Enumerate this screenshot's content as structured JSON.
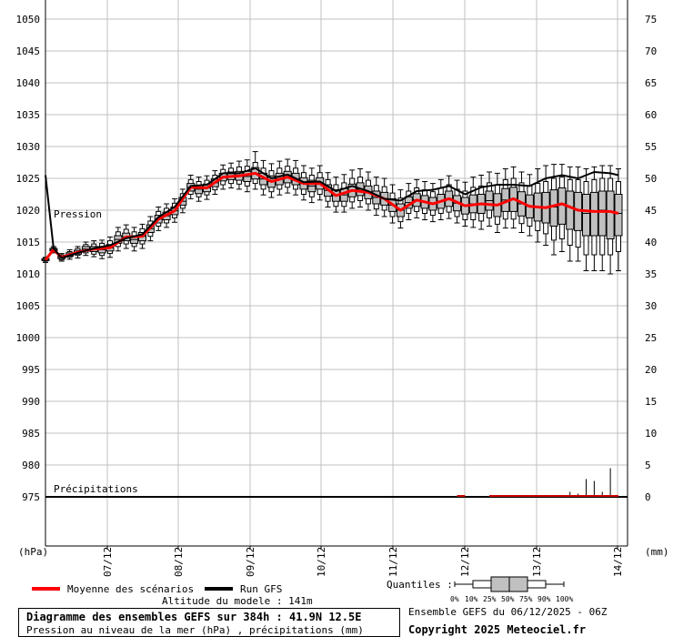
{
  "chart_data": {
    "type": "line",
    "left_axis_unit": "(hPa)",
    "right_axis_unit": "(mm)",
    "left_ticks": [
      1050,
      1045,
      1040,
      1035,
      1030,
      1025,
      1020,
      1015,
      1010,
      1005,
      1000,
      995,
      990,
      985,
      980,
      975
    ],
    "right_ticks": [
      75,
      70,
      65,
      60,
      55,
      50,
      45,
      40,
      35,
      30,
      25,
      20,
      15,
      10,
      5,
      0
    ],
    "ylim_pressure": [
      975,
      1052
    ],
    "x_ticks": [
      "07/12",
      "08/12",
      "09/12",
      "10/12",
      "11/12",
      "12/12",
      "13/12",
      "14/12"
    ],
    "pressure_label": "Pression",
    "precip_label": "Précipitations",
    "grid": true,
    "boxes": [
      {
        "d": 0,
        "min": 1011.8,
        "q10": 1012.0,
        "q25": 1012.1,
        "med": 1012.2,
        "q75": 1012.4,
        "q90": 1012.5,
        "max": 1012.6
      },
      {
        "d": 0.25,
        "min": 1013.3,
        "q10": 1013.5,
        "q25": 1013.6,
        "med": 1013.8,
        "q75": 1014.0,
        "q90": 1014.1,
        "max": 1014.3
      },
      {
        "d": 0.5,
        "min": 1012.0,
        "q10": 1012.2,
        "q25": 1012.4,
        "med": 1012.6,
        "q75": 1012.8,
        "q90": 1013.0,
        "max": 1013.2
      },
      {
        "d": 0.75,
        "min": 1012.3,
        "q10": 1012.6,
        "q25": 1012.8,
        "med": 1013.0,
        "q75": 1013.3,
        "q90": 1013.5,
        "max": 1013.8
      },
      {
        "d": 1,
        "min": 1012.5,
        "q10": 1012.9,
        "q25": 1013.1,
        "med": 1013.4,
        "q75": 1013.7,
        "q90": 1014.0,
        "max": 1014.3
      },
      {
        "d": 1.25,
        "min": 1012.9,
        "q10": 1013.3,
        "q25": 1013.6,
        "med": 1013.9,
        "q75": 1014.3,
        "q90": 1014.6,
        "max": 1015.0
      },
      {
        "d": 1.5,
        "min": 1012.7,
        "q10": 1013.1,
        "q25": 1013.5,
        "med": 1013.9,
        "q75": 1014.3,
        "q90": 1014.7,
        "max": 1015.2
      },
      {
        "d": 1.75,
        "min": 1012.4,
        "q10": 1012.9,
        "q25": 1013.3,
        "med": 1013.8,
        "q75": 1014.3,
        "q90": 1014.8,
        "max": 1015.3
      },
      {
        "d": 2,
        "min": 1012.6,
        "q10": 1013.2,
        "q25": 1013.6,
        "med": 1014.1,
        "q75": 1014.6,
        "q90": 1015.2,
        "max": 1015.8
      },
      {
        "d": 2.25,
        "min": 1013.6,
        "q10": 1014.3,
        "q25": 1014.8,
        "med": 1015.4,
        "q75": 1016.0,
        "q90": 1016.6,
        "max": 1017.3
      },
      {
        "d": 2.5,
        "min": 1014.0,
        "q10": 1014.7,
        "q25": 1015.2,
        "med": 1015.8,
        "q75": 1016.4,
        "q90": 1017.0,
        "max": 1017.7
      },
      {
        "d": 2.75,
        "min": 1013.6,
        "q10": 1014.3,
        "q25": 1014.8,
        "med": 1015.4,
        "q75": 1016.0,
        "q90": 1016.6,
        "max": 1017.3
      },
      {
        "d": 3,
        "min": 1014.0,
        "q10": 1014.7,
        "q25": 1015.2,
        "med": 1015.9,
        "q75": 1016.5,
        "q90": 1017.1,
        "max": 1017.8
      },
      {
        "d": 3.25,
        "min": 1015.2,
        "q10": 1015.9,
        "q25": 1016.5,
        "med": 1017.1,
        "q75": 1017.7,
        "q90": 1018.3,
        "max": 1019.0
      },
      {
        "d": 3.5,
        "min": 1016.8,
        "q10": 1017.5,
        "q25": 1018.0,
        "med": 1018.6,
        "q75": 1019.2,
        "q90": 1019.8,
        "max": 1020.5
      },
      {
        "d": 3.75,
        "min": 1017.3,
        "q10": 1018.0,
        "q25": 1018.5,
        "med": 1019.1,
        "q75": 1019.7,
        "q90": 1020.3,
        "max": 1021.0
      },
      {
        "d": 4,
        "min": 1018.1,
        "q10": 1018.8,
        "q25": 1019.3,
        "med": 1019.9,
        "q75": 1020.5,
        "q90": 1021.1,
        "max": 1021.8
      },
      {
        "d": 4.25,
        "min": 1019.6,
        "q10": 1020.3,
        "q25": 1020.8,
        "med": 1021.4,
        "q75": 1022.0,
        "q90": 1022.6,
        "max": 1023.3
      },
      {
        "d": 4.5,
        "min": 1021.8,
        "q10": 1022.5,
        "q25": 1023.0,
        "med": 1023.6,
        "q75": 1024.2,
        "q90": 1024.8,
        "max": 1025.5
      },
      {
        "d": 4.75,
        "min": 1021.4,
        "q10": 1022.1,
        "q25": 1022.6,
        "med": 1023.3,
        "q75": 1023.9,
        "q90": 1024.5,
        "max": 1025.2
      },
      {
        "d": 5,
        "min": 1021.7,
        "q10": 1022.4,
        "q25": 1022.9,
        "med": 1023.5,
        "q75": 1024.1,
        "q90": 1024.7,
        "max": 1025.4
      },
      {
        "d": 5.25,
        "min": 1022.5,
        "q10": 1023.2,
        "q25": 1023.7,
        "med": 1024.3,
        "q75": 1024.9,
        "q90": 1025.5,
        "max": 1026.2
      },
      {
        "d": 5.5,
        "min": 1023.3,
        "q10": 1024.0,
        "q25": 1024.6,
        "med": 1025.2,
        "q75": 1025.8,
        "q90": 1026.4,
        "max": 1027.1
      },
      {
        "d": 5.75,
        "min": 1023.5,
        "q10": 1024.2,
        "q25": 1024.8,
        "med": 1025.4,
        "q75": 1026.0,
        "q90": 1026.6,
        "max": 1027.4
      },
      {
        "d": 6,
        "min": 1023.3,
        "q10": 1024.1,
        "q25": 1024.7,
        "med": 1025.4,
        "q75": 1026.1,
        "q90": 1026.8,
        "max": 1027.7
      },
      {
        "d": 6.25,
        "min": 1022.9,
        "q10": 1023.8,
        "q25": 1024.5,
        "med": 1025.3,
        "q75": 1026.1,
        "q90": 1026.9,
        "max": 1027.9
      },
      {
        "d": 6.5,
        "min": 1023.3,
        "q10": 1024.2,
        "q25": 1024.9,
        "med": 1025.8,
        "q75": 1026.7,
        "q90": 1027.5,
        "max": 1029.2
      },
      {
        "d": 6.75,
        "min": 1022.4,
        "q10": 1023.3,
        "q25": 1024.0,
        "med": 1024.9,
        "q75": 1025.8,
        "q90": 1026.6,
        "max": 1027.8
      },
      {
        "d": 7,
        "min": 1022.0,
        "q10": 1022.9,
        "q25": 1023.6,
        "med": 1024.5,
        "q75": 1025.4,
        "q90": 1026.2,
        "max": 1027.3
      },
      {
        "d": 7.25,
        "min": 1022.4,
        "q10": 1023.3,
        "q25": 1024.0,
        "med": 1024.9,
        "q75": 1025.8,
        "q90": 1026.6,
        "max": 1027.7
      },
      {
        "d": 7.5,
        "min": 1022.7,
        "q10": 1023.6,
        "q25": 1024.3,
        "med": 1025.2,
        "q75": 1026.1,
        "q90": 1026.9,
        "max": 1028.0
      },
      {
        "d": 7.75,
        "min": 1022.4,
        "q10": 1023.3,
        "q25": 1024.0,
        "med": 1024.9,
        "q75": 1025.8,
        "q90": 1026.6,
        "max": 1027.8
      },
      {
        "d": 8,
        "min": 1021.6,
        "q10": 1022.5,
        "q25": 1023.3,
        "med": 1024.2,
        "q75": 1025.1,
        "q90": 1025.9,
        "max": 1027.0
      },
      {
        "d": 8.25,
        "min": 1021.2,
        "q10": 1022.1,
        "q25": 1022.9,
        "med": 1023.8,
        "q75": 1024.7,
        "q90": 1025.5,
        "max": 1026.6
      },
      {
        "d": 8.5,
        "min": 1021.6,
        "q10": 1022.5,
        "q25": 1023.3,
        "med": 1024.2,
        "q75": 1025.1,
        "q90": 1025.9,
        "max": 1027.0
      },
      {
        "d": 8.75,
        "min": 1020.5,
        "q10": 1021.4,
        "q25": 1022.2,
        "med": 1023.1,
        "q75": 1024.0,
        "q90": 1024.8,
        "max": 1025.9
      },
      {
        "d": 9,
        "min": 1019.7,
        "q10": 1020.6,
        "q25": 1021.4,
        "med": 1022.3,
        "q75": 1023.2,
        "q90": 1024.0,
        "max": 1025.2
      },
      {
        "d": 9.25,
        "min": 1019.7,
        "q10": 1020.6,
        "q25": 1021.4,
        "med": 1022.4,
        "q75": 1023.4,
        "q90": 1024.3,
        "max": 1025.6
      },
      {
        "d": 9.5,
        "min": 1020.3,
        "q10": 1021.3,
        "q25": 1022.1,
        "med": 1023.1,
        "q75": 1024.1,
        "q90": 1025.0,
        "max": 1026.3
      },
      {
        "d": 9.75,
        "min": 1020.5,
        "q10": 1021.5,
        "q25": 1022.3,
        "med": 1023.3,
        "q75": 1024.3,
        "q90": 1025.2,
        "max": 1026.5
      },
      {
        "d": 10,
        "min": 1020.0,
        "q10": 1021.0,
        "q25": 1021.8,
        "med": 1022.8,
        "q75": 1023.8,
        "q90": 1024.7,
        "max": 1026.0
      },
      {
        "d": 10.25,
        "min": 1019.2,
        "q10": 1020.2,
        "q25": 1021.0,
        "med": 1022.0,
        "q75": 1023.0,
        "q90": 1023.9,
        "max": 1025.2
      },
      {
        "d": 10.5,
        "min": 1019.0,
        "q10": 1020.0,
        "q25": 1020.8,
        "med": 1021.8,
        "q75": 1022.8,
        "q90": 1023.7,
        "max": 1025.0
      },
      {
        "d": 10.75,
        "min": 1018.0,
        "q10": 1019.0,
        "q25": 1019.8,
        "med": 1020.8,
        "q75": 1021.8,
        "q90": 1022.7,
        "max": 1024.0
      },
      {
        "d": 11,
        "min": 1017.2,
        "q10": 1018.2,
        "q25": 1019.0,
        "med": 1020.0,
        "q75": 1021.0,
        "q90": 1021.9,
        "max": 1023.2
      },
      {
        "d": 11.25,
        "min": 1018.5,
        "q10": 1019.5,
        "q25": 1020.3,
        "med": 1021.2,
        "q75": 1022.1,
        "q90": 1023.0,
        "max": 1024.2
      },
      {
        "d": 11.5,
        "min": 1018.8,
        "q10": 1019.8,
        "q25": 1020.6,
        "med": 1021.6,
        "q75": 1022.6,
        "q90": 1023.5,
        "max": 1024.8
      },
      {
        "d": 11.75,
        "min": 1018.5,
        "q10": 1019.5,
        "q25": 1020.3,
        "med": 1021.3,
        "q75": 1022.3,
        "q90": 1023.2,
        "max": 1024.5
      },
      {
        "d": 12,
        "min": 1018.2,
        "q10": 1019.2,
        "q25": 1020.0,
        "med": 1021.0,
        "q75": 1022.0,
        "q90": 1022.9,
        "max": 1024.2
      },
      {
        "d": 12.25,
        "min": 1018.5,
        "q10": 1019.5,
        "q25": 1020.3,
        "med": 1021.4,
        "q75": 1022.5,
        "q90": 1023.5,
        "max": 1024.8
      },
      {
        "d": 12.5,
        "min": 1018.7,
        "q10": 1019.7,
        "q25": 1020.6,
        "med": 1021.8,
        "q75": 1023.0,
        "q90": 1024.0,
        "max": 1025.4
      },
      {
        "d": 12.75,
        "min": 1018.0,
        "q10": 1019.0,
        "q25": 1019.9,
        "med": 1021.1,
        "q75": 1022.3,
        "q90": 1023.3,
        "max": 1024.7
      },
      {
        "d": 13,
        "min": 1017.5,
        "q10": 1018.5,
        "q25": 1019.4,
        "med": 1020.7,
        "q75": 1022.0,
        "q90": 1023.0,
        "max": 1024.4
      },
      {
        "d": 13.25,
        "min": 1017.3,
        "q10": 1018.5,
        "q25": 1019.6,
        "med": 1021.0,
        "q75": 1022.4,
        "q90": 1023.6,
        "max": 1025.2
      },
      {
        "d": 13.5,
        "min": 1017.0,
        "q10": 1018.3,
        "q25": 1019.5,
        "med": 1021.0,
        "q75": 1022.5,
        "q90": 1023.8,
        "max": 1025.5
      },
      {
        "d": 13.75,
        "min": 1017.5,
        "q10": 1018.8,
        "q25": 1020.0,
        "med": 1021.5,
        "q75": 1023.0,
        "q90": 1024.3,
        "max": 1026.0
      },
      {
        "d": 14,
        "min": 1016.5,
        "q10": 1017.8,
        "q25": 1019.0,
        "med": 1020.8,
        "q75": 1022.6,
        "q90": 1024.0,
        "max": 1025.8
      },
      {
        "d": 14.25,
        "min": 1017.2,
        "q10": 1018.6,
        "q25": 1019.8,
        "med": 1021.6,
        "q75": 1023.4,
        "q90": 1024.8,
        "max": 1026.5
      },
      {
        "d": 14.5,
        "min": 1017.2,
        "q10": 1018.6,
        "q25": 1019.8,
        "med": 1021.8,
        "q75": 1023.6,
        "q90": 1025.0,
        "max": 1026.8
      },
      {
        "d": 14.75,
        "min": 1016.5,
        "q10": 1017.9,
        "q25": 1019.1,
        "med": 1021.0,
        "q75": 1022.9,
        "q90": 1024.3,
        "max": 1026.0
      },
      {
        "d": 15,
        "min": 1016.0,
        "q10": 1017.5,
        "q25": 1018.8,
        "med": 1020.6,
        "q75": 1022.4,
        "q90": 1023.8,
        "max": 1025.6
      },
      {
        "d": 15.25,
        "min": 1015.0,
        "q10": 1016.8,
        "q25": 1018.3,
        "med": 1020.5,
        "q75": 1022.7,
        "q90": 1024.2,
        "max": 1026.5
      },
      {
        "d": 15.5,
        "min": 1014.5,
        "q10": 1016.3,
        "q25": 1018.0,
        "med": 1020.4,
        "q75": 1022.8,
        "q90": 1024.5,
        "max": 1027.0
      },
      {
        "d": 15.75,
        "min": 1013.0,
        "q10": 1015.3,
        "q25": 1017.5,
        "med": 1020.5,
        "q75": 1023.2,
        "q90": 1025.0,
        "max": 1027.2
      },
      {
        "d": 16,
        "min": 1013.5,
        "q10": 1015.5,
        "q25": 1017.8,
        "med": 1021.0,
        "q75": 1023.5,
        "q90": 1025.2,
        "max": 1027.2
      },
      {
        "d": 16.25,
        "min": 1012.0,
        "q10": 1014.5,
        "q25": 1017.0,
        "med": 1020.5,
        "q75": 1023.0,
        "q90": 1024.8,
        "max": 1026.8
      },
      {
        "d": 16.5,
        "min": 1012.0,
        "q10": 1014.2,
        "q25": 1016.8,
        "med": 1020.0,
        "q75": 1022.8,
        "q90": 1024.8,
        "max": 1026.8
      },
      {
        "d": 16.75,
        "min": 1010.5,
        "q10": 1013.0,
        "q25": 1016.0,
        "med": 1019.5,
        "q75": 1022.5,
        "q90": 1024.5,
        "max": 1026.5
      },
      {
        "d": 17,
        "min": 1010.5,
        "q10": 1013.0,
        "q25": 1016.0,
        "med": 1019.8,
        "q75": 1022.8,
        "q90": 1024.8,
        "max": 1026.8
      },
      {
        "d": 17.25,
        "min": 1010.5,
        "q10": 1013.0,
        "q25": 1016.0,
        "med": 1020.0,
        "q75": 1023.0,
        "q90": 1025.0,
        "max": 1027.0
      },
      {
        "d": 17.5,
        "min": 1010.0,
        "q10": 1013.0,
        "q25": 1015.5,
        "med": 1019.8,
        "q75": 1023.0,
        "q90": 1025.0,
        "max": 1027.0
      },
      {
        "d": 17.75,
        "min": 1010.5,
        "q10": 1013.5,
        "q25": 1016.0,
        "med": 1019.5,
        "q75": 1022.5,
        "q90": 1024.5,
        "max": 1026.5
      }
    ],
    "series": [
      {
        "name": "Moyenne des scénarios",
        "color": "#ff0000",
        "x": [
          0,
          0.25,
          0.5,
          1,
          1.5,
          2,
          2.5,
          3,
          3.5,
          4,
          4.5,
          5,
          5.5,
          6,
          6.5,
          7,
          7.5,
          8,
          8.5,
          9,
          9.5,
          10,
          10.5,
          11,
          11.5,
          12,
          12.5,
          13,
          13.5,
          14,
          14.5,
          15,
          15.5,
          16,
          16.5,
          17,
          17.5,
          17.75
        ],
        "y": [
          1012.2,
          1013.8,
          1012.6,
          1013.4,
          1013.9,
          1014.1,
          1015.8,
          1015.9,
          1018.6,
          1019.9,
          1023.6,
          1023.5,
          1025.2,
          1025.4,
          1025.8,
          1024.5,
          1025.2,
          1024.2,
          1024.2,
          1022.3,
          1023.1,
          1022.8,
          1021.8,
          1020.0,
          1021.6,
          1021.0,
          1021.8,
          1020.7,
          1021.0,
          1020.8,
          1021.8,
          1020.6,
          1020.4,
          1021.0,
          1020.0,
          1019.8,
          1019.8,
          1019.5
        ]
      },
      {
        "name": "Run GFS",
        "color": "#000000",
        "x": [
          0,
          0.25,
          0.5,
          1,
          1.5,
          2,
          2.5,
          3,
          3.5,
          4,
          4.5,
          5,
          5.5,
          6,
          6.5,
          7,
          7.5,
          8,
          8.5,
          9,
          9.5,
          10,
          10.5,
          11,
          11.5,
          12,
          12.5,
          13,
          13.5,
          14,
          14.5,
          15,
          15.5,
          16,
          16.5,
          17,
          17.5,
          17.75
        ],
        "y": [
          1025.5,
          1014.0,
          1012.5,
          1013.3,
          1014.0,
          1014.5,
          1015.6,
          1016.2,
          1018.9,
          1020.5,
          1023.8,
          1024.0,
          1025.8,
          1025.8,
          1026.6,
          1025.0,
          1025.6,
          1024.4,
          1024.5,
          1023.0,
          1023.8,
          1023.0,
          1021.8,
          1021.5,
          1023.0,
          1023.2,
          1023.8,
          1022.5,
          1023.6,
          1024.0,
          1024.0,
          1023.8,
          1025.0,
          1025.5,
          1025.0,
          1026.0,
          1025.8,
          1025.5
        ]
      }
    ],
    "precip_bars": [
      {
        "d": 13.75,
        "max_mm": 0.1
      },
      {
        "d": 14.5,
        "max_mm": 0.2
      },
      {
        "d": 15.0,
        "max_mm": 0.2
      },
      {
        "d": 15.5,
        "max_mm": 0.3
      },
      {
        "d": 16.0,
        "max_mm": 0.3
      },
      {
        "d": 16.25,
        "max_mm": 0.8
      },
      {
        "d": 16.5,
        "max_mm": 0.5
      },
      {
        "d": 16.75,
        "max_mm": 2.8
      },
      {
        "d": 17.0,
        "max_mm": 2.5
      },
      {
        "d": 17.25,
        "max_mm": 0.8
      },
      {
        "d": 17.5,
        "max_mm": 4.5
      }
    ]
  },
  "legend": {
    "mean_label": "Moyenne des scénarios",
    "gfs_label": "Run GFS",
    "quantiles_label": "Quantiles :",
    "quantile_ticks": [
      "0%",
      "10%",
      "25%",
      "50%",
      "75%",
      "90%",
      "100%"
    ],
    "altitude": "Altitude du modele : 141m",
    "ensemble_info": "Ensemble GEFS du 06/12/2025 - 06Z",
    "copyright": "Copyright 2025 Meteociel.fr"
  },
  "info": {
    "title": "Diagramme des ensembles GEFS sur 384h : 41.9N 12.5E",
    "subtitle": "Pression au niveau de la mer (hPa) , précipitations (mm)"
  },
  "colors": {
    "mean": "#ff0000",
    "gfs": "#000000",
    "box_fill": "#c0c0c0",
    "grid": "#c0c0c0"
  }
}
